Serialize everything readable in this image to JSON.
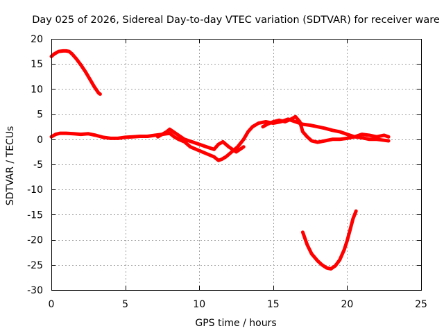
{
  "chart_data": {
    "type": "line",
    "title": "Day 025 of 2026, Sidereal Day-to-day VTEC variation (SDTVAR) for receiver ware",
    "xlabel": "GPS time / hours",
    "ylabel": "SDTVAR / TECUs",
    "xlim": [
      0,
      25
    ],
    "ylim": [
      -30,
      20
    ],
    "xticks": [
      0,
      5,
      10,
      15,
      20,
      25
    ],
    "yticks": [
      -30,
      -25,
      -20,
      -15,
      -10,
      -5,
      0,
      5,
      10,
      15,
      20
    ],
    "grid": true,
    "color": "#ff0000",
    "series": [
      {
        "name": "segment-1",
        "x": [
          0.0,
          0.2,
          0.5,
          0.8,
          1.0,
          1.2,
          1.4,
          1.7,
          2.0,
          2.3,
          2.6,
          2.9,
          3.2,
          3.3
        ],
        "y": [
          16.5,
          17.0,
          17.5,
          17.6,
          17.6,
          17.5,
          17.0,
          16.0,
          14.8,
          13.5,
          12.0,
          10.5,
          9.2,
          9.0
        ]
      },
      {
        "name": "segment-2",
        "x": [
          0.0,
          0.3,
          0.6,
          1.0,
          1.5,
          2.0,
          2.5,
          3.0,
          3.5,
          4.0,
          4.5,
          5.0,
          5.5,
          6.0,
          6.5,
          7.0,
          7.5,
          8.0,
          8.3,
          8.6,
          9.0,
          9.4,
          9.8,
          10.2,
          10.6,
          11.0,
          11.3,
          11.5,
          11.8,
          12.2,
          12.6,
          13.0,
          13.3,
          13.6,
          14.0,
          14.5,
          15.0,
          15.5,
          16.0,
          16.5,
          17.0,
          17.5,
          18.0,
          18.5,
          19.0,
          19.5,
          20.0,
          20.5,
          21.0,
          21.5,
          22.0,
          22.5,
          22.8
        ],
        "y": [
          0.5,
          1.0,
          1.2,
          1.2,
          1.1,
          1.0,
          1.1,
          0.8,
          0.4,
          0.2,
          0.2,
          0.4,
          0.5,
          0.6,
          0.6,
          0.8,
          1.0,
          1.2,
          0.5,
          0.0,
          -0.5,
          -1.5,
          -2.0,
          -2.5,
          -3.0,
          -3.5,
          -4.2,
          -4.0,
          -3.5,
          -2.5,
          -1.5,
          0.0,
          1.5,
          2.5,
          3.2,
          3.5,
          3.2,
          3.5,
          4.0,
          3.5,
          3.0,
          2.8,
          2.5,
          2.2,
          1.8,
          1.5,
          1.0,
          0.5,
          0.3,
          0.0,
          0.0,
          -0.2,
          -0.3
        ]
      },
      {
        "name": "segment-3",
        "x": [
          7.2,
          7.5,
          7.8,
          8.0,
          8.5,
          9.0,
          9.5,
          10.0,
          10.5,
          11.0,
          11.3,
          11.6,
          12.0,
          12.5,
          13.0
        ],
        "y": [
          0.5,
          1.0,
          1.5,
          2.0,
          1.0,
          0.0,
          -0.5,
          -1.0,
          -1.5,
          -2.0,
          -1.0,
          -0.5,
          -1.5,
          -2.5,
          -1.5
        ]
      },
      {
        "name": "segment-4",
        "x": [
          14.3,
          14.6,
          15.0,
          15.4,
          15.8,
          16.2,
          16.5,
          16.8,
          17.0,
          17.3,
          17.6,
          18.0,
          18.5,
          19.0,
          19.5,
          20.0,
          20.5,
          21.0,
          21.5,
          22.0,
          22.5,
          22.8
        ],
        "y": [
          2.5,
          3.0,
          3.5,
          3.8,
          3.5,
          4.0,
          4.5,
          3.5,
          1.5,
          0.5,
          -0.3,
          -0.6,
          -0.3,
          0.0,
          0.0,
          0.2,
          0.5,
          1.0,
          0.8,
          0.5,
          0.8,
          0.5
        ]
      },
      {
        "name": "segment-5",
        "x": [
          17.0,
          17.3,
          17.6,
          18.0,
          18.3,
          18.6,
          18.9,
          19.2,
          19.5,
          19.8,
          20.0,
          20.2,
          20.4,
          20.6
        ],
        "y": [
          -18.5,
          -21.0,
          -22.8,
          -24.2,
          -25.0,
          -25.6,
          -25.8,
          -25.2,
          -24.0,
          -22.0,
          -20.2,
          -18.0,
          -15.8,
          -14.3
        ]
      }
    ]
  }
}
